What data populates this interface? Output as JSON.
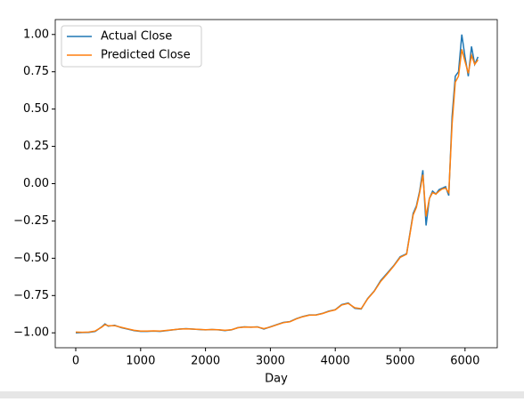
{
  "chart_data": {
    "type": "line",
    "xlabel": "Day",
    "x": [
      0,
      100,
      200,
      300,
      400,
      450,
      500,
      600,
      700,
      800,
      900,
      1000,
      1100,
      1200,
      1300,
      1400,
      1500,
      1600,
      1700,
      1800,
      1900,
      2000,
      2100,
      2200,
      2300,
      2400,
      2500,
      2600,
      2700,
      2800,
      2900,
      3000,
      3100,
      3200,
      3300,
      3400,
      3500,
      3600,
      3700,
      3800,
      3900,
      4000,
      4100,
      4200,
      4300,
      4400,
      4500,
      4600,
      4700,
      4800,
      4900,
      5000,
      5100,
      5200,
      5250,
      5300,
      5350,
      5400,
      5450,
      5500,
      5550,
      5600,
      5650,
      5700,
      5750,
      5800,
      5850,
      5900,
      5950,
      6000,
      6050,
      6100,
      6150,
      6200
    ],
    "series": [
      {
        "name": "Actual Close",
        "color": "#1f77b4",
        "values": [
          -1.0,
          -0.998,
          -0.997,
          -0.99,
          -0.96,
          -0.94,
          -0.955,
          -0.95,
          -0.965,
          -0.975,
          -0.985,
          -0.99,
          -0.99,
          -0.988,
          -0.99,
          -0.985,
          -0.98,
          -0.975,
          -0.972,
          -0.975,
          -0.978,
          -0.98,
          -0.978,
          -0.98,
          -0.985,
          -0.98,
          -0.965,
          -0.96,
          -0.962,
          -0.96,
          -0.975,
          -0.96,
          -0.945,
          -0.93,
          -0.925,
          -0.905,
          -0.89,
          -0.88,
          -0.88,
          -0.87,
          -0.855,
          -0.845,
          -0.81,
          -0.8,
          -0.835,
          -0.84,
          -0.77,
          -0.72,
          -0.65,
          -0.6,
          -0.55,
          -0.49,
          -0.47,
          -0.2,
          -0.15,
          -0.05,
          0.09,
          -0.28,
          -0.1,
          -0.05,
          -0.07,
          -0.04,
          -0.03,
          -0.02,
          -0.08,
          0.45,
          0.72,
          0.75,
          1.0,
          0.85,
          0.72,
          0.92,
          0.8,
          0.85
        ]
      },
      {
        "name": "Predicted Close",
        "color": "#ff7f0e",
        "values": [
          -0.995,
          -0.996,
          -0.995,
          -0.988,
          -0.962,
          -0.945,
          -0.953,
          -0.952,
          -0.963,
          -0.973,
          -0.983,
          -0.988,
          -0.988,
          -0.987,
          -0.988,
          -0.984,
          -0.979,
          -0.975,
          -0.973,
          -0.975,
          -0.977,
          -0.979,
          -0.978,
          -0.979,
          -0.983,
          -0.979,
          -0.966,
          -0.961,
          -0.962,
          -0.961,
          -0.972,
          -0.961,
          -0.946,
          -0.932,
          -0.926,
          -0.907,
          -0.892,
          -0.882,
          -0.881,
          -0.871,
          -0.857,
          -0.846,
          -0.813,
          -0.803,
          -0.832,
          -0.838,
          -0.772,
          -0.722,
          -0.655,
          -0.605,
          -0.553,
          -0.495,
          -0.473,
          -0.21,
          -0.16,
          -0.06,
          0.06,
          -0.22,
          -0.1,
          -0.06,
          -0.07,
          -0.05,
          -0.035,
          -0.03,
          -0.06,
          0.4,
          0.68,
          0.72,
          0.9,
          0.82,
          0.74,
          0.86,
          0.8,
          0.83
        ]
      }
    ],
    "xlim": [
      -316,
      6497
    ],
    "ylim": [
      -1.1,
      1.1
    ],
    "xticks": [
      0,
      1000,
      2000,
      3000,
      4000,
      5000,
      6000
    ],
    "yticks": [
      {
        "value": -1,
        "label": "−1.00"
      },
      {
        "value": -0.75,
        "label": "−0.75"
      },
      {
        "value": -0.5,
        "label": "−0.50"
      },
      {
        "value": -0.25,
        "label": "−0.25"
      },
      {
        "value": 0,
        "label": "0.00"
      },
      {
        "value": 0.25,
        "label": "0.25"
      },
      {
        "value": 0.5,
        "label": "0.50"
      },
      {
        "value": 0.75,
        "label": "0.75"
      },
      {
        "value": 1,
        "label": "1.00"
      }
    ],
    "legend": "upper left"
  }
}
